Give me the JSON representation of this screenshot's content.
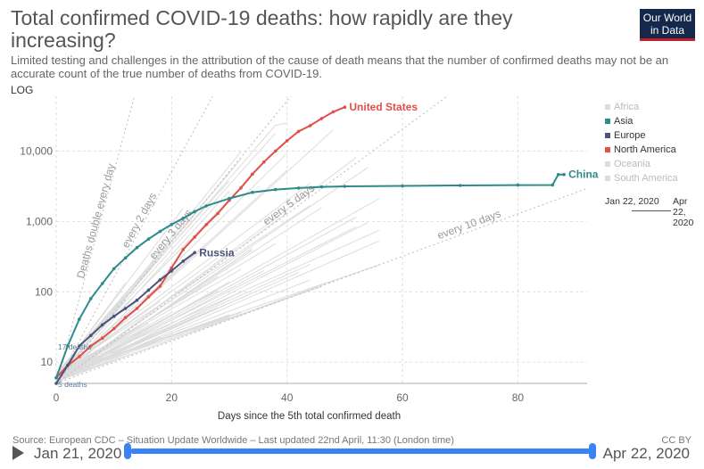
{
  "header": {
    "title": "Total confirmed COVID-19 deaths: how rapidly are they increasing?",
    "subtitle": "Limited testing and challenges in the attribution of the cause of death means that the number of confirmed deaths may not be an accurate count of the true number of deaths from COVID-19.",
    "logo_text": "Our World in Data",
    "scale": "LOG"
  },
  "footer": {
    "source": "Source: European CDC – Situation Update Worldwide – Last updated 22nd April, 11:30 (London time)",
    "license": "CC BY",
    "timeline_start": "Jan 21, 2020",
    "timeline_end": "Apr 22, 2020"
  },
  "legend": {
    "items": [
      {
        "label": "Africa",
        "color": "#cccccc",
        "active": false
      },
      {
        "label": "Asia",
        "color": "#2e8b8b",
        "active": true
      },
      {
        "label": "Europe",
        "color": "#4a5478",
        "active": true
      },
      {
        "label": "North America",
        "color": "#e0504b",
        "active": true
      },
      {
        "label": "Oceania",
        "color": "#cccccc",
        "active": false
      },
      {
        "label": "South America",
        "color": "#cccccc",
        "active": false
      }
    ],
    "timeline_start": "Jan 22, 2020",
    "timeline_end": "Apr 22, 2020"
  },
  "chart_data": {
    "type": "line",
    "xlabel": "Days since the 5th total confirmed death",
    "ylabel": "",
    "xlim": [
      0,
      92
    ],
    "ylim": [
      5,
      60000
    ],
    "yscale": "log",
    "x_ticks": [
      0,
      20,
      40,
      60,
      80
    ],
    "y_ticks": [
      {
        "value": 10,
        "label": "10"
      },
      {
        "value": 100,
        "label": "100"
      },
      {
        "value": 1000,
        "label": "1,000"
      },
      {
        "value": 10000,
        "label": "10,000"
      }
    ],
    "grid": true,
    "reference_lines": [
      {
        "label": "Deaths double every day",
        "doubling_days": 1
      },
      {
        "label": "every 2 days",
        "doubling_days": 2
      },
      {
        "label": "every 3 days",
        "doubling_days": 3
      },
      {
        "label": "every 5 days",
        "doubling_days": 5
      },
      {
        "label": "every 10 days",
        "doubling_days": 10
      }
    ],
    "annotations": [
      {
        "label": "17 deaths",
        "x": 0,
        "y": 17
      },
      {
        "label": "5 deaths",
        "x": 0,
        "y": 5
      }
    ],
    "series": [
      {
        "name": "United States",
        "color": "#e0504b",
        "x": [
          0,
          2,
          4,
          6,
          8,
          10,
          12,
          14,
          16,
          18,
          20,
          22,
          24,
          26,
          28,
          30,
          32,
          34,
          36,
          38,
          40,
          42,
          44,
          46,
          48,
          50
        ],
        "y": [
          6,
          9,
          12,
          17,
          22,
          30,
          43,
          58,
          85,
          120,
          220,
          400,
          600,
          900,
          1300,
          2000,
          3000,
          4700,
          7000,
          10000,
          14000,
          19000,
          23000,
          29000,
          36000,
          42000
        ]
      },
      {
        "name": "China",
        "color": "#2e8b8b",
        "x": [
          0,
          2,
          4,
          6,
          8,
          10,
          12,
          14,
          16,
          18,
          20,
          22,
          24,
          26,
          30,
          34,
          38,
          42,
          46,
          50,
          60,
          70,
          80,
          86,
          87,
          88
        ],
        "y": [
          6,
          17,
          41,
          80,
          131,
          213,
          304,
          425,
          563,
          722,
          908,
          1113,
          1380,
          1665,
          2118,
          2594,
          2835,
          2981,
          3100,
          3150,
          3200,
          3250,
          3280,
          3290,
          4630,
          4640
        ]
      },
      {
        "name": "Russia",
        "color": "#4a5478",
        "x": [
          0,
          2,
          4,
          6,
          8,
          10,
          12,
          14,
          16,
          18,
          20,
          22,
          24
        ],
        "y": [
          5,
          9,
          17,
          24,
          34,
          45,
          58,
          76,
          106,
          148,
          198,
          273,
          361
        ]
      }
    ]
  }
}
